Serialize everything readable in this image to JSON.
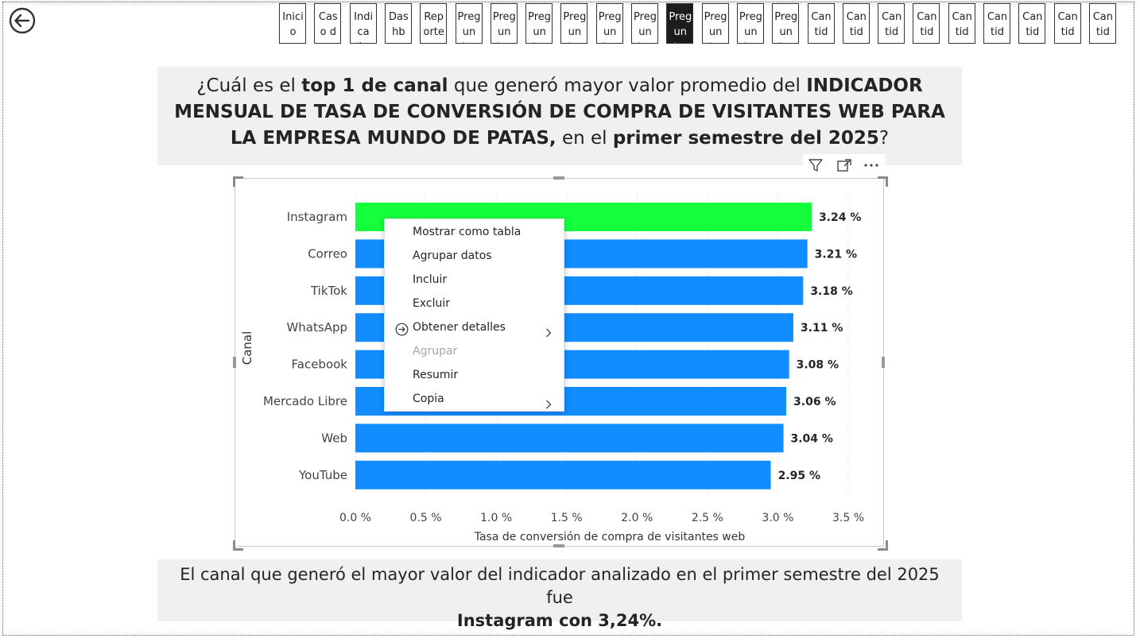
{
  "nav": {
    "back_icon": "circle-arrow-left-icon",
    "buttons": [
      {
        "label": "Inicio",
        "active": false
      },
      {
        "label": "Caso de...",
        "active": false
      },
      {
        "label": "Indicad...",
        "active": false
      },
      {
        "label": "Dashbo...",
        "active": false
      },
      {
        "label": "Reporte",
        "active": false
      },
      {
        "label": "Pregunt...",
        "active": false
      },
      {
        "label": "Pregunt...",
        "active": false
      },
      {
        "label": "Pregunt...",
        "active": false
      },
      {
        "label": "Pregunt...",
        "active": false
      },
      {
        "label": "Pregunt...",
        "active": false
      },
      {
        "label": "Pregunt...",
        "active": false
      },
      {
        "label": "Pregunt...",
        "active": true
      },
      {
        "label": "Pregunt...",
        "active": false
      },
      {
        "label": "Pregunt...",
        "active": false
      },
      {
        "label": "Pregunt...",
        "active": false
      },
      {
        "label": "Cantida...",
        "active": false
      },
      {
        "label": "Cantida...",
        "active": false
      },
      {
        "label": "Cantida...",
        "active": false
      },
      {
        "label": "Cantida...",
        "active": false
      },
      {
        "label": "Cantida...",
        "active": false
      },
      {
        "label": "Cantida...",
        "active": false
      },
      {
        "label": "Cantida...",
        "active": false
      },
      {
        "label": "Cantida...",
        "active": false
      },
      {
        "label": "Cantida...",
        "active": false
      }
    ]
  },
  "question": {
    "p1": "¿Cuál es el ",
    "b1": "top 1 de canal",
    "p2": " que generó mayor valor promedio del ",
    "b2": "INDICADOR MENSUAL DE TASA DE CONVERSIÓN DE COMPRA DE VISITANTES WEB PARA LA EMPRESA MUNDO DE PATAS,",
    "p3": " en el ",
    "b3": "primer semestre del 2025",
    "p4": "?"
  },
  "answer": {
    "line1": "El canal que generó el mayor valor del  indicador analizado en el primer semestre del 2025 fue",
    "line2": "Instagram con 3,24%."
  },
  "visual_toolbar": {
    "icons": [
      "filter-icon",
      "focus-mode-icon",
      "more-options-icon"
    ]
  },
  "chart_data": {
    "type": "bar",
    "orientation": "horizontal",
    "categories": [
      "Instagram",
      "Correo",
      "TikTok",
      "WhatsApp",
      "Facebook",
      "Mercado Libre",
      "Web",
      "YouTube"
    ],
    "values": [
      3.24,
      3.21,
      3.18,
      3.11,
      3.08,
      3.06,
      3.04,
      2.95
    ],
    "data_labels": [
      "3.24 %",
      "3.21 %",
      "3.18 %",
      "3.11 %",
      "3.08 %",
      "3.06 %",
      "3.04 %",
      "2.95 %"
    ],
    "xlabel": "Tasa de conversión de compra de visitantes web",
    "ylabel": "Canal",
    "xlim": [
      0,
      3.5
    ],
    "x_ticks": [
      0,
      0.5,
      1.0,
      1.5,
      2.0,
      2.5,
      3.0,
      3.5
    ],
    "x_tick_labels": [
      "0.0 %",
      "0.5 %",
      "1.0 %",
      "1.5 %",
      "2.0 %",
      "2.5 %",
      "3.0 %",
      "3.5 %"
    ],
    "grid": "vertical dotted",
    "colors": {
      "highlight": "#14ff3c",
      "default": "#118dff"
    },
    "highlight_index": 0
  },
  "context_menu": {
    "items": [
      {
        "label": "Mostrar como tabla",
        "disabled": false,
        "submenu": false,
        "icon": ""
      },
      {
        "label": "Agrupar datos",
        "disabled": false,
        "submenu": false,
        "icon": ""
      },
      {
        "label": "Incluir",
        "disabled": false,
        "submenu": false,
        "icon": ""
      },
      {
        "label": "Excluir",
        "disabled": false,
        "submenu": false,
        "icon": ""
      },
      {
        "label": "Obtener detalles",
        "disabled": false,
        "submenu": true,
        "icon": "circle-arrow-right-icon"
      },
      {
        "label": "Agrupar",
        "disabled": true,
        "submenu": false,
        "icon": ""
      },
      {
        "label": "Resumir",
        "disabled": false,
        "submenu": false,
        "icon": ""
      },
      {
        "label": "Copia",
        "disabled": false,
        "submenu": true,
        "icon": ""
      }
    ]
  }
}
